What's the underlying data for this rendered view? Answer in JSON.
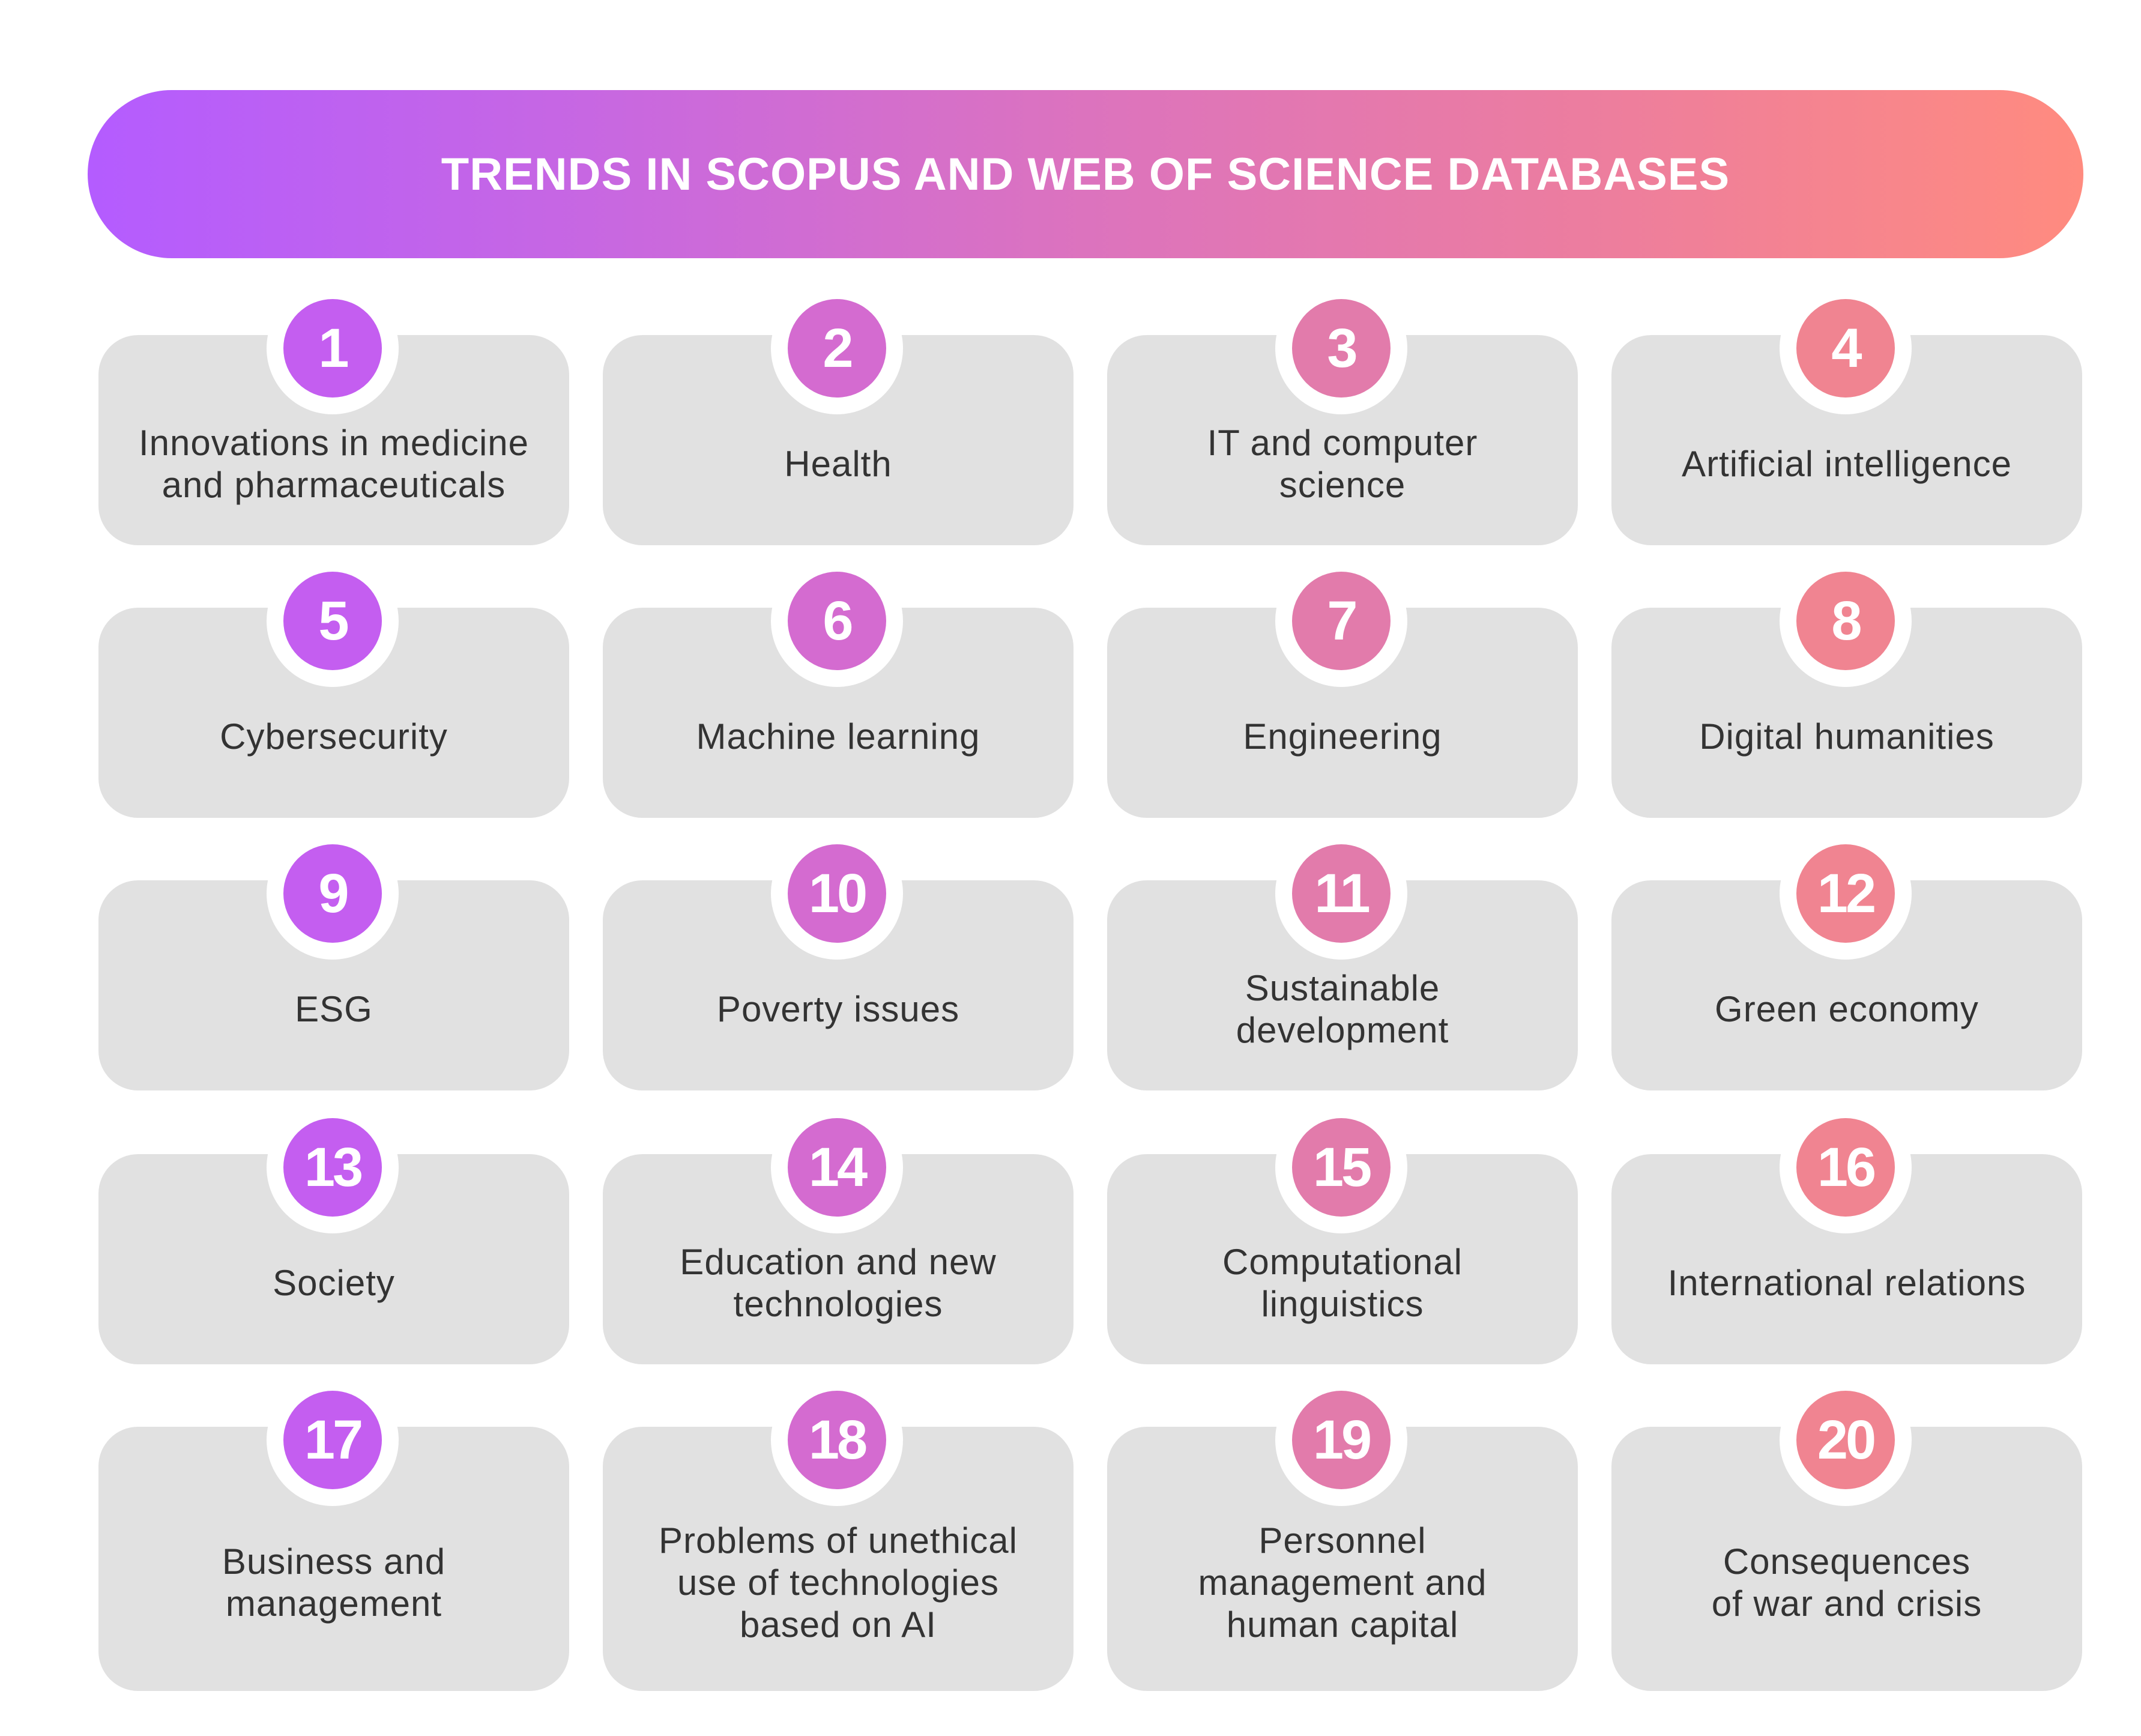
{
  "title": "TRENDS IN SCOPUS AND WEB OF SCIENCE DATABASES",
  "colors": {
    "gradient_start": "#b45cff",
    "gradient_end": "#ff8b7f",
    "card_background": "#e1e1e1",
    "badge_col_1": "#c45ef0",
    "badge_col_2": "#d46bd0",
    "badge_col_3": "#e27bab",
    "badge_col_4": "#f08491"
  },
  "trends": [
    {
      "number": "1",
      "label": "Innovations in medicine\nand pharmaceuticals"
    },
    {
      "number": "2",
      "label": "Health"
    },
    {
      "number": "3",
      "label": "IT and computer\nscience"
    },
    {
      "number": "4",
      "label": "Artificial intelligence"
    },
    {
      "number": "5",
      "label": "Cybersecurity"
    },
    {
      "number": "6",
      "label": "Machine learning"
    },
    {
      "number": "7",
      "label": "Engineering"
    },
    {
      "number": "8",
      "label": "Digital humanities"
    },
    {
      "number": "9",
      "label": "ESG"
    },
    {
      "number": "10",
      "label": "Poverty issues"
    },
    {
      "number": "11",
      "label": "Sustainable\ndevelopment"
    },
    {
      "number": "12",
      "label": "Green economy"
    },
    {
      "number": "13",
      "label": "Society"
    },
    {
      "number": "14",
      "label": "Education and new\ntechnologies"
    },
    {
      "number": "15",
      "label": "Computational\nlinguistics"
    },
    {
      "number": "16",
      "label": "International relations"
    },
    {
      "number": "17",
      "label": "Business and\nmanagement"
    },
    {
      "number": "18",
      "label": "Problems of unethical\nuse of technologies\nbased on AI"
    },
    {
      "number": "19",
      "label": "Personnel\nmanagement and\nhuman capital"
    },
    {
      "number": "20",
      "label": "Consequences\nof war and crisis"
    }
  ]
}
